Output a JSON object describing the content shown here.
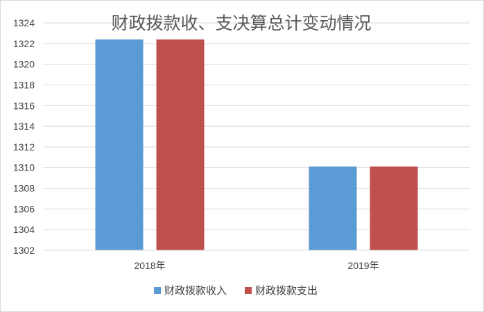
{
  "chart_data": {
    "type": "bar",
    "title": "财政拨款收、支决算总计变动情况",
    "categories": [
      "2018年",
      "2019年"
    ],
    "series": [
      {
        "name": "财政拨款收入",
        "color": "#5b9bd5",
        "values": [
          1322.4,
          1310.1
        ]
      },
      {
        "name": "财政拨款支出",
        "color": "#c0504d",
        "values": [
          1322.4,
          1310.1
        ]
      }
    ],
    "ylim": [
      1302,
      1324
    ],
    "yticks": [
      1302,
      1304,
      1306,
      1308,
      1310,
      1312,
      1314,
      1316,
      1318,
      1320,
      1322,
      1324
    ],
    "grid": true,
    "legend_position": "bottom"
  }
}
